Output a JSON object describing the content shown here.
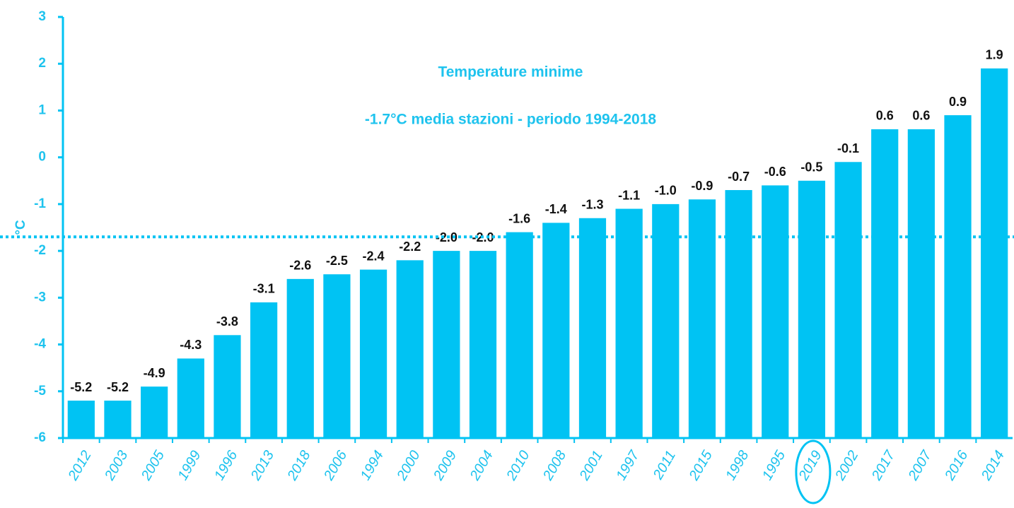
{
  "chart_data": {
    "type": "bar",
    "title": "Temperature minime",
    "subtitle": "-1.7°C media stazioni  - periodo 1994-2018",
    "ylabel": "°C",
    "categories": [
      "2012",
      "2003",
      "2005",
      "1999",
      "1996",
      "2013",
      "2018",
      "2006",
      "1994",
      "2000",
      "2009",
      "2004",
      "2010",
      "2008",
      "2001",
      "1997",
      "2011",
      "2015",
      "1998",
      "1995",
      "2019",
      "2002",
      "2017",
      "2007",
      "2016",
      "2014"
    ],
    "values": [
      -5.2,
      -5.2,
      -4.9,
      -4.3,
      -3.8,
      -3.1,
      -2.6,
      -2.5,
      -2.4,
      -2.2,
      -2.0,
      -2.0,
      -1.6,
      -1.4,
      -1.3,
      -1.1,
      -1.0,
      -0.9,
      -0.7,
      -0.6,
      -0.5,
      -0.1,
      0.6,
      0.6,
      0.9,
      1.9
    ],
    "value_labels": [
      "-5.2",
      "-5.2",
      "-4.9",
      "-4.3",
      "-3.8",
      "-3.1",
      "-2.6",
      "-2.5",
      "-2.4",
      "-2.2",
      "-2.0",
      "-2.0",
      "-1.6",
      "-1.4",
      "-1.3",
      "-1.1",
      "-1.0",
      "-0.9",
      "-0.7",
      "-0.6",
      "-0.5",
      "-0.1",
      "0.6",
      "0.6",
      "0.9",
      "1.9"
    ],
    "color": "#00c3f3",
    "mean_line": -1.7,
    "highlight": "2019",
    "ylim": [
      -6,
      3
    ],
    "yticks": [
      -6,
      -5,
      -4,
      -3,
      -2,
      -1,
      0,
      1,
      2,
      3
    ],
    "grid": false
  }
}
